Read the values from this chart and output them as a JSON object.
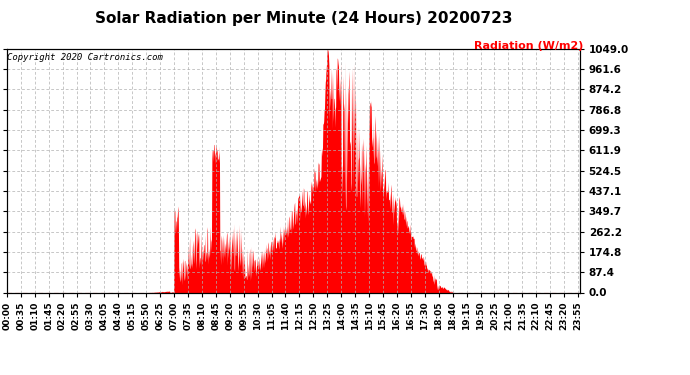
{
  "title": "Solar Radiation per Minute (24 Hours) 20200723",
  "ylabel": "Radiation (W/m2)",
  "copyright": "Copyright 2020 Cartronics.com",
  "bg_color": "#ffffff",
  "plot_bg_color": "#ffffff",
  "fill_color": "#ff0000",
  "line_color": "#ff0000",
  "grid_color": "#b0b0b0",
  "yticks": [
    0.0,
    87.4,
    174.8,
    262.2,
    349.7,
    437.1,
    524.5,
    611.9,
    699.3,
    786.8,
    874.2,
    961.6,
    1049.0
  ],
  "ymax": 1049.0,
  "title_fontsize": 11,
  "label_fontsize": 8,
  "tick_fontsize": 7,
  "total_minutes": 1440
}
